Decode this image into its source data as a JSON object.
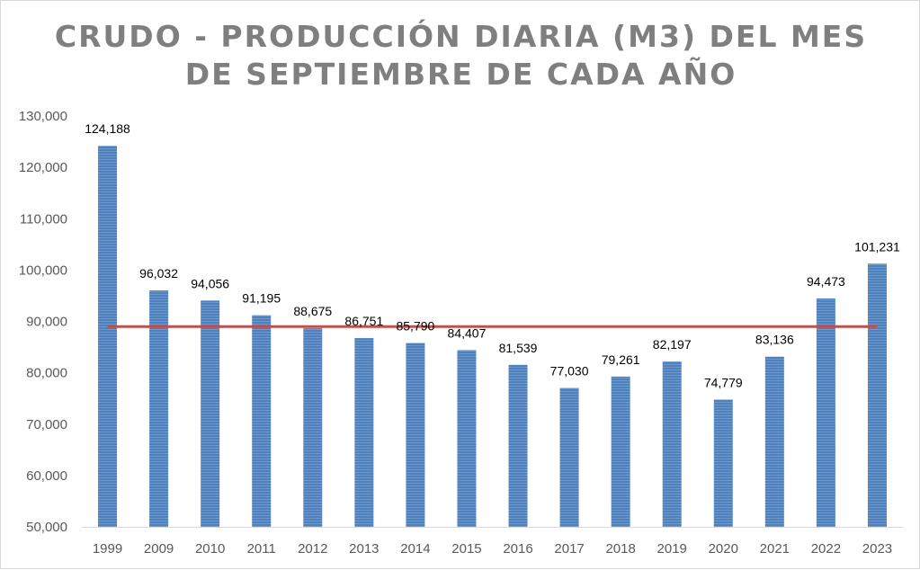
{
  "chart_data": {
    "type": "bar",
    "title_lines": [
      "CRUDO - PRODUCCIÓN DIARIA (M3) DEL MES",
      "DE SEPTIEMBRE DE CADA AÑO"
    ],
    "categories": [
      "1999",
      "2009",
      "2010",
      "2011",
      "2012",
      "2013",
      "2014",
      "2015",
      "2016",
      "2017",
      "2018",
      "2019",
      "2020",
      "2021",
      "2022",
      "2023"
    ],
    "values": [
      124188,
      96032,
      94056,
      91195,
      88675,
      86751,
      85790,
      84407,
      81539,
      77030,
      79261,
      82197,
      74779,
      83136,
      94473,
      101231
    ],
    "data_labels": [
      "124,188",
      "96,032",
      "94,056",
      "91,195",
      "88,675",
      "86,751",
      "85,790",
      "84,407",
      "81,539",
      "77,030",
      "79,261",
      "82,197",
      "74,779",
      "83,136",
      "94,473",
      "101,231"
    ],
    "reference_line": {
      "value": 89000,
      "color": "#c0504d"
    },
    "ylim": [
      50000,
      130000
    ],
    "y_ticks": [
      50000,
      60000,
      70000,
      80000,
      90000,
      100000,
      110000,
      120000,
      130000
    ],
    "y_tick_labels": [
      "50,000",
      "60,000",
      "70,000",
      "80,000",
      "90,000",
      "100,000",
      "110,000",
      "120,000",
      "130,000"
    ],
    "bar_color": "#4f81bd",
    "grid": false,
    "legend": "none"
  }
}
